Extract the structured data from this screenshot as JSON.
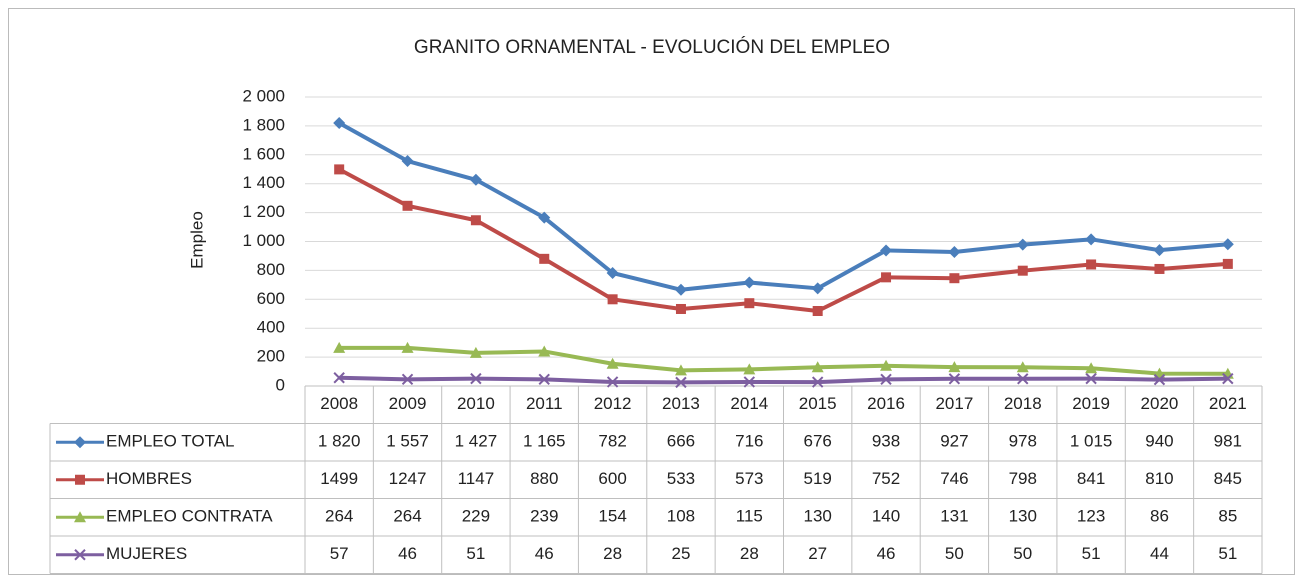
{
  "chart_data": {
    "type": "line",
    "title": "GRANITO ORNAMENTAL - EVOLUCIÓN DEL EMPLEO",
    "y_label": "Empleo",
    "categories": [
      "2008",
      "2009",
      "2010",
      "2011",
      "2012",
      "2013",
      "2014",
      "2015",
      "2016",
      "2017",
      "2018",
      "2019",
      "2020",
      "2021"
    ],
    "ylim": [
      0,
      2000
    ],
    "yticks": [
      0,
      200,
      400,
      600,
      800,
      {
        "value": 1000,
        "label": "1 000"
      },
      {
        "value": 1200,
        "label": "1 200"
      },
      {
        "value": 1400,
        "label": "1 400"
      },
      {
        "value": 1600,
        "label": "1 600"
      },
      {
        "value": 1800,
        "label": "1 800"
      },
      {
        "value": 2000,
        "label": "2 000"
      }
    ],
    "grid": true,
    "series": [
      {
        "name": "EMPLEO TOTAL",
        "color": "#4a7ebb",
        "marker": "diamond",
        "values": [
          1820,
          1557,
          1427,
          1165,
          782,
          666,
          716,
          676,
          938,
          927,
          978,
          1015,
          940,
          981
        ],
        "value_labels": [
          "1 820",
          "1 557",
          "1 427",
          "1 165",
          "782",
          "666",
          "716",
          "676",
          "938",
          "927",
          "978",
          "1 015",
          "940",
          "981"
        ]
      },
      {
        "name": "HOMBRES",
        "color": "#be4b48",
        "marker": "square",
        "values": [
          1499,
          1247,
          1147,
          880,
          600,
          533,
          573,
          519,
          752,
          746,
          798,
          841,
          810,
          845
        ]
      },
      {
        "name": "EMPLEO CONTRATA",
        "color": "#98b954",
        "marker": "triangle",
        "values": [
          264,
          264,
          229,
          239,
          154,
          108,
          115,
          130,
          140,
          131,
          130,
          123,
          86,
          85
        ]
      },
      {
        "name": "MUJERES",
        "color": "#7d5fa0",
        "marker": "x",
        "values": [
          57,
          46,
          51,
          46,
          28,
          25,
          28,
          27,
          46,
          50,
          50,
          51,
          44,
          51
        ]
      }
    ]
  }
}
